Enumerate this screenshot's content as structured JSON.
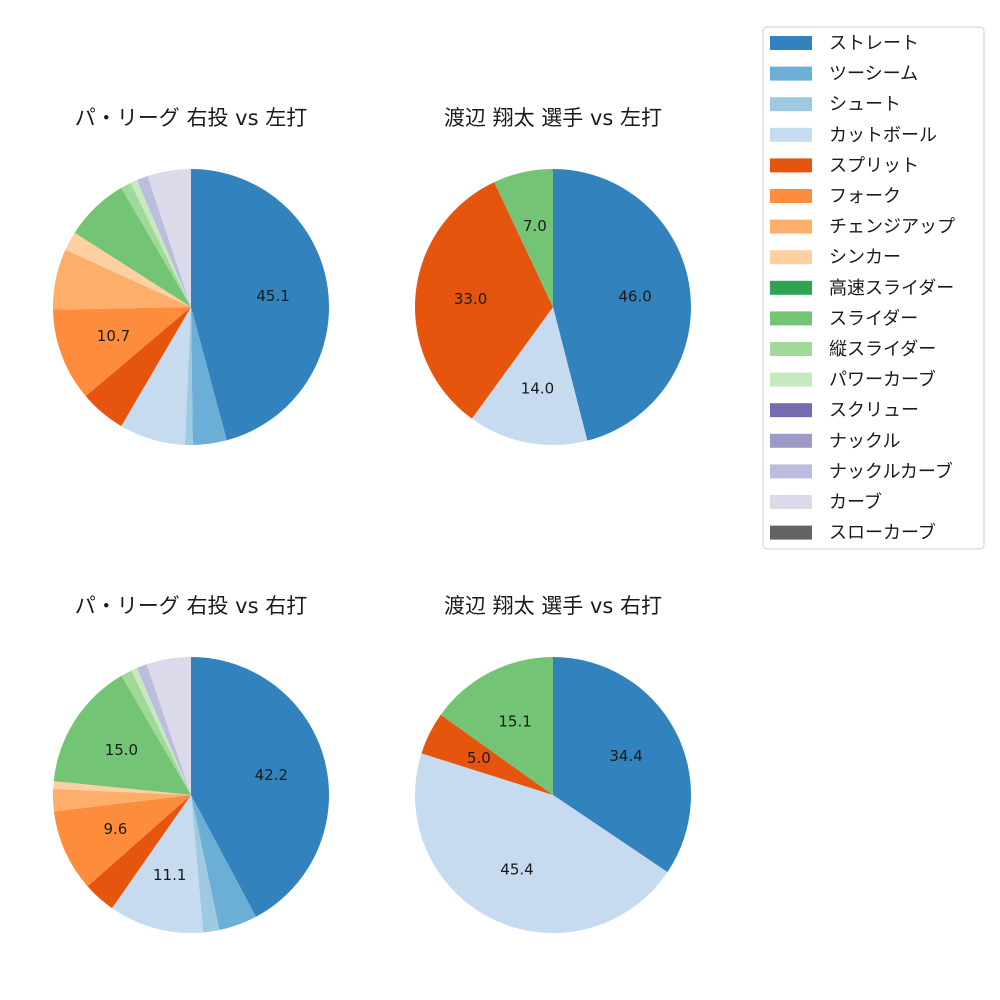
{
  "legend": {
    "items": [
      {
        "name": "ストレート",
        "color": "#3182bd"
      },
      {
        "name": "ツーシーム",
        "color": "#6baed6"
      },
      {
        "name": "シュート",
        "color": "#9ecae1"
      },
      {
        "name": "カットボール",
        "color": "#c6dbef"
      },
      {
        "name": "スプリット",
        "color": "#e6550d"
      },
      {
        "name": "フォーク",
        "color": "#fd8d3c"
      },
      {
        "name": "チェンジアップ",
        "color": "#fdae6b"
      },
      {
        "name": "シンカー",
        "color": "#fdd0a2"
      },
      {
        "name": "高速スライダー",
        "color": "#31a354"
      },
      {
        "name": "スライダー",
        "color": "#74c476"
      },
      {
        "name": "縦スライダー",
        "color": "#a1d99b"
      },
      {
        "name": "パワーカーブ",
        "color": "#c7e9c0"
      },
      {
        "name": "スクリュー",
        "color": "#756bb1"
      },
      {
        "name": "ナックル",
        "color": "#9e9ac8"
      },
      {
        "name": "ナックルカーブ",
        "color": "#bcbddc"
      },
      {
        "name": "カーブ",
        "color": "#dadaeb"
      },
      {
        "name": "スローカーブ",
        "color": "#636363"
      }
    ]
  },
  "chart_data": [
    {
      "type": "pie",
      "title": "パ・リーグ 右投 vs 左打",
      "slices": [
        {
          "name": "ストレート",
          "value": 45.1,
          "label": "45.1"
        },
        {
          "name": "ツーシーム",
          "value": 3.9,
          "label": ""
        },
        {
          "name": "シュート",
          "value": 0.9,
          "label": ""
        },
        {
          "name": "カットボール",
          "value": 7.6,
          "label": ""
        },
        {
          "name": "スプリット",
          "value": 5.3,
          "label": ""
        },
        {
          "name": "フォーク",
          "value": 10.7,
          "label": "10.7"
        },
        {
          "name": "チェンジアップ",
          "value": 7.0,
          "label": ""
        },
        {
          "name": "シンカー",
          "value": 2.2,
          "label": ""
        },
        {
          "name": "スライダー",
          "value": 7.4,
          "label": ""
        },
        {
          "name": "縦スライダー",
          "value": 1.2,
          "label": ""
        },
        {
          "name": "パワーカーブ",
          "value": 0.8,
          "label": ""
        },
        {
          "name": "ナックルカーブ",
          "value": 1.3,
          "label": ""
        },
        {
          "name": "カーブ",
          "value": 5.0,
          "label": ""
        }
      ]
    },
    {
      "type": "pie",
      "title": "渡辺 翔太 選手 vs 左打",
      "slices": [
        {
          "name": "ストレート",
          "value": 46.0,
          "label": "46.0"
        },
        {
          "name": "カットボール",
          "value": 14.0,
          "label": "14.0"
        },
        {
          "name": "スプリット",
          "value": 33.0,
          "label": "33.0"
        },
        {
          "name": "スライダー",
          "value": 7.0,
          "label": "7.0"
        }
      ]
    },
    {
      "type": "pie",
      "title": "パ・リーグ 右投 vs 右打",
      "slices": [
        {
          "name": "ストレート",
          "value": 42.2,
          "label": "42.2"
        },
        {
          "name": "ツーシーム",
          "value": 4.5,
          "label": ""
        },
        {
          "name": "シュート",
          "value": 1.9,
          "label": ""
        },
        {
          "name": "カットボール",
          "value": 11.1,
          "label": "11.1"
        },
        {
          "name": "スプリット",
          "value": 3.8,
          "label": ""
        },
        {
          "name": "フォーク",
          "value": 9.6,
          "label": "9.6"
        },
        {
          "name": "チェンジアップ",
          "value": 2.6,
          "label": ""
        },
        {
          "name": "シンカー",
          "value": 0.9,
          "label": ""
        },
        {
          "name": "スライダー",
          "value": 15.0,
          "label": "15.0"
        },
        {
          "name": "縦スライダー",
          "value": 1.3,
          "label": ""
        },
        {
          "name": "パワーカーブ",
          "value": 0.7,
          "label": ""
        },
        {
          "name": "ナックルカーブ",
          "value": 1.2,
          "label": ""
        },
        {
          "name": "カーブ",
          "value": 5.2,
          "label": ""
        }
      ]
    },
    {
      "type": "pie",
      "title": "渡辺 翔太 選手 vs 右打",
      "slices": [
        {
          "name": "ストレート",
          "value": 34.4,
          "label": "34.4"
        },
        {
          "name": "カットボール",
          "value": 45.4,
          "label": "45.4"
        },
        {
          "name": "スプリット",
          "value": 5.0,
          "label": "5.0"
        },
        {
          "name": "スライダー",
          "value": 15.1,
          "label": "15.1"
        }
      ]
    }
  ]
}
